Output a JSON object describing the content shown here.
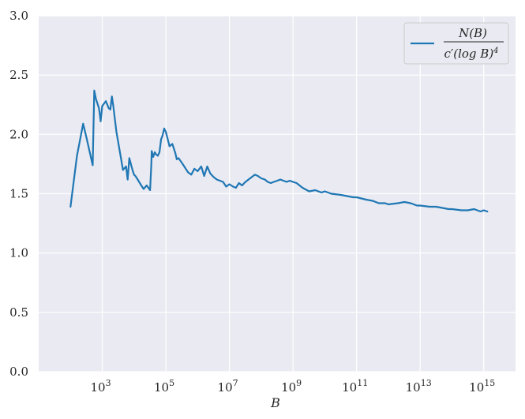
{
  "chart_data": {
    "type": "line",
    "title": "",
    "xlabel": "B",
    "ylabel": "",
    "x_scale": "log10",
    "xlim": [
      10,
      1e+16
    ],
    "ylim": [
      0,
      3
    ],
    "grid": true,
    "legend_position": "top-right",
    "background": "#EAEAF2",
    "y_ticks": [
      "0.0",
      "0.5",
      "1.0",
      "1.5",
      "2.0",
      "2.5",
      "3.0"
    ],
    "x_ticks": [
      {
        "base": "10",
        "exp": "3",
        "value": 1000.0
      },
      {
        "base": "10",
        "exp": "5",
        "value": 100000.0
      },
      {
        "base": "10",
        "exp": "7",
        "value": 10000000.0
      },
      {
        "base": "10",
        "exp": "9",
        "value": 1000000000.0
      },
      {
        "base": "10",
        "exp": "11",
        "value": 100000000000.0
      },
      {
        "base": "10",
        "exp": "13",
        "value": 10000000000000.0
      },
      {
        "base": "10",
        "exp": "15",
        "value": 1000000000000000.0
      }
    ],
    "legend": {
      "numerator": "N(B)",
      "denominator": "c′(log B)",
      "exponent": "4"
    },
    "series": [
      {
        "color": "#1F77B4",
        "x": [
          100.0,
          160.0,
          250.0,
          320.0,
          500.0,
          560.0,
          630.0,
          790.0,
          890.0,
          1000.0,
          1300.0,
          1600.0,
          1800.0,
          2000.0,
          2200.0,
          2800.0,
          3500.0,
          4500.0,
          5600.0,
          6300.0,
          7100.0,
          8900.0,
          10000.0,
          11000.0,
          13000.0,
          16000.0,
          20000.0,
          25000.0,
          32000.0,
          35000.0,
          36000.0,
          40000.0,
          45000.0,
          50000.0,
          56000.0,
          63000.0,
          71000.0,
          79000.0,
          89000.0,
          100000.0,
          110000.0,
          130000.0,
          160000.0,
          200000.0,
          220000.0,
          250000.0,
          320000.0,
          400000.0,
          500000.0,
          630000.0,
          790000.0,
          1000000.0,
          1300000.0,
          1600000.0,
          2000000.0,
          2500000.0,
          3200000.0,
          4000000.0,
          5000000.0,
          6300000.0,
          7900000.0,
          10000000.0,
          13000000.0,
          16000000.0,
          20000000.0,
          25000000.0,
          32000000.0,
          40000000.0,
          50000000.0,
          63000000.0,
          79000000.0,
          100000000.0,
          130000000.0,
          160000000.0,
          200000000.0,
          250000000.0,
          320000000.0,
          400000000.0,
          500000000.0,
          630000000.0,
          790000000.0,
          1000000000.0,
          1300000000.0,
          1600000000.0,
          2000000000.0,
          3200000000.0,
          5000000000.0,
          7900000000.0,
          10000000000.0,
          16000000000.0,
          32000000000.0,
          50000000000.0,
          79000000000.0,
          100000000000.0,
          200000000000.0,
          320000000000.0,
          500000000000.0,
          790000000000.0,
          1000000000000.0,
          2000000000000.0,
          3200000000000.0,
          5000000000000.0,
          7900000000000.0,
          10000000000000.0,
          20000000000000.0,
          32000000000000.0,
          50000000000000.0,
          79000000000000.0,
          100000000000000.0,
          200000000000000.0,
          320000000000000.0,
          500000000000000.0,
          790000000000000.0,
          1000000000000000.0,
          1300000000000000.0
        ],
        "y": [
          1.39,
          1.82,
          2.09,
          1.97,
          1.74,
          2.37,
          2.3,
          2.22,
          2.11,
          2.24,
          2.28,
          2.22,
          2.21,
          2.32,
          2.25,
          2.02,
          1.87,
          1.7,
          1.73,
          1.62,
          1.8,
          1.7,
          1.66,
          1.65,
          1.62,
          1.58,
          1.54,
          1.57,
          1.53,
          1.75,
          1.86,
          1.81,
          1.85,
          1.83,
          1.82,
          1.85,
          1.96,
          1.99,
          2.05,
          2.02,
          1.98,
          1.9,
          1.92,
          1.84,
          1.79,
          1.8,
          1.76,
          1.72,
          1.68,
          1.66,
          1.71,
          1.69,
          1.73,
          1.65,
          1.73,
          1.67,
          1.64,
          1.62,
          1.61,
          1.6,
          1.56,
          1.58,
          1.56,
          1.55,
          1.59,
          1.57,
          1.6,
          1.62,
          1.64,
          1.66,
          1.65,
          1.63,
          1.62,
          1.6,
          1.59,
          1.6,
          1.61,
          1.62,
          1.61,
          1.6,
          1.61,
          1.6,
          1.59,
          1.57,
          1.55,
          1.52,
          1.53,
          1.51,
          1.52,
          1.5,
          1.49,
          1.48,
          1.47,
          1.47,
          1.45,
          1.44,
          1.42,
          1.42,
          1.41,
          1.42,
          1.43,
          1.42,
          1.4,
          1.4,
          1.39,
          1.39,
          1.38,
          1.37,
          1.37,
          1.36,
          1.36,
          1.37,
          1.35,
          1.36,
          1.35
        ]
      }
    ]
  }
}
